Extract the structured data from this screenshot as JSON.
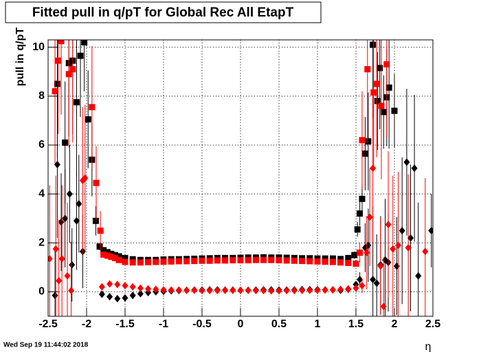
{
  "chart_data": {
    "type": "errorbar-scatter",
    "title": "Fitted pull in q/pT for Global Rec All EtapT",
    "ylabel": "pull in q/pT",
    "xlabel": "η",
    "timestamp": "Wed Sep 19 11:44:02 2018",
    "xlim": [
      -2.5,
      2.5
    ],
    "ylim": [
      -1,
      10.3
    ],
    "xticks": [
      -2.5,
      -2,
      -1.5,
      -1,
      -0.5,
      0,
      0.5,
      1,
      1.5,
      2,
      2.5
    ],
    "yticks": [
      0,
      2,
      4,
      6,
      8,
      10
    ],
    "grid": true,
    "series": [
      {
        "color": "#000000",
        "marker": "square",
        "x": [
          -2.38,
          -2.28,
          -2.23,
          -2.18,
          -2.13,
          -2.08,
          -2.03,
          -1.98,
          -1.93,
          -1.88,
          -1.83,
          -1.78,
          -1.73,
          -1.68,
          -1.63,
          -1.58,
          -1.5,
          -1.4,
          -1.3,
          -1.2,
          -1.1,
          -1.0,
          -0.9,
          -0.8,
          -0.7,
          -0.6,
          -0.5,
          -0.4,
          -0.3,
          -0.2,
          -0.1,
          0.0,
          0.1,
          0.2,
          0.3,
          0.4,
          0.5,
          0.6,
          0.7,
          0.8,
          0.9,
          1.0,
          1.1,
          1.2,
          1.3,
          1.4,
          1.48,
          1.52,
          1.55,
          1.58,
          1.62,
          1.66,
          1.72,
          1.78,
          1.81,
          1.86,
          1.9,
          1.93,
          2.0
        ],
        "values": [
          8.5,
          6.1,
          9.35,
          9.45,
          7.75,
          9.65,
          10.2,
          7.05,
          5.4,
          2.9,
          1.85,
          1.7,
          1.62,
          1.55,
          1.5,
          1.45,
          1.38,
          1.33,
          1.3,
          1.3,
          1.3,
          1.32,
          1.33,
          1.33,
          1.34,
          1.35,
          1.36,
          1.37,
          1.38,
          1.38,
          1.38,
          1.39,
          1.4,
          1.4,
          1.41,
          1.4,
          1.4,
          1.39,
          1.38,
          1.37,
          1.37,
          1.36,
          1.36,
          1.36,
          1.34,
          1.38,
          1.5,
          2.55,
          3.2,
          3.8,
          5.65,
          6.15,
          10.1,
          7.8,
          9.15,
          7.35,
          7.95,
          8.35,
          7.4
        ],
        "errors": [
          3,
          2.5,
          3,
          3,
          3,
          2.5,
          2,
          2,
          1.5,
          0.6,
          0.15,
          0.05,
          0.05,
          0.05,
          0.05,
          0.05,
          0.04,
          0.04,
          0.04,
          0.04,
          0.04,
          0.04,
          0.04,
          0.04,
          0.04,
          0.04,
          0.04,
          0.04,
          0.04,
          0.04,
          0.04,
          0.04,
          0.04,
          0.04,
          0.04,
          0.04,
          0.04,
          0.04,
          0.04,
          0.04,
          0.04,
          0.04,
          0.04,
          0.04,
          0.04,
          0.04,
          0.15,
          0.3,
          0.5,
          0.6,
          1.5,
          2,
          3,
          2,
          2.5,
          1.5,
          2,
          2.5,
          1.5
        ]
      },
      {
        "color": "#ff0000",
        "marker": "square",
        "x": [
          -2.41,
          -2.37,
          -2.33,
          -2.23,
          -2.18,
          -1.93,
          -1.875,
          -1.82,
          -1.78,
          -1.73,
          -1.68,
          -1.63,
          -1.58,
          -1.5,
          -1.4,
          -1.3,
          -1.2,
          -1.1,
          -1.0,
          -0.9,
          -0.8,
          -0.7,
          -0.6,
          -0.5,
          -0.4,
          -0.3,
          -0.2,
          -0.1,
          0.0,
          0.1,
          0.2,
          0.3,
          0.4,
          0.5,
          0.6,
          0.7,
          0.8,
          0.9,
          1.0,
          1.1,
          1.2,
          1.3,
          1.4,
          1.5,
          1.55,
          1.58,
          1.65,
          1.73,
          1.77,
          1.83,
          1.9
        ],
        "values": [
          8.2,
          9.45,
          10.25,
          8.9,
          9.1,
          7.55,
          4.45,
          2.5,
          1.52,
          1.48,
          1.43,
          1.38,
          1.3,
          1.22,
          1.2,
          1.2,
          1.21,
          1.22,
          1.23,
          1.24,
          1.25,
          1.25,
          1.26,
          1.27,
          1.27,
          1.28,
          1.28,
          1.29,
          1.29,
          1.29,
          1.3,
          1.3,
          1.3,
          1.29,
          1.28,
          1.27,
          1.26,
          1.25,
          1.24,
          1.23,
          1.22,
          1.2,
          1.18,
          1.15,
          1.6,
          6.2,
          9.1,
          8.15,
          8.5,
          7.6,
          9.3
        ],
        "errors": [
          3,
          3,
          3,
          3,
          3,
          2.5,
          1.5,
          0.8,
          0.05,
          0.05,
          0.05,
          0.05,
          0.05,
          0.04,
          0.04,
          0.04,
          0.04,
          0.04,
          0.04,
          0.04,
          0.04,
          0.04,
          0.04,
          0.04,
          0.04,
          0.04,
          0.04,
          0.04,
          0.04,
          0.04,
          0.04,
          0.04,
          0.04,
          0.04,
          0.04,
          0.04,
          0.04,
          0.04,
          0.04,
          0.04,
          0.04,
          0.04,
          0.04,
          0.05,
          0.4,
          2,
          3,
          3,
          3,
          3,
          3
        ]
      },
      {
        "color": "#000000",
        "marker": "diamond",
        "x": [
          -2.41,
          -2.38,
          -2.33,
          -2.28,
          -2.22,
          -2.19,
          -2.13,
          -2.1,
          -2.05,
          -1.8,
          -1.7,
          -1.6,
          -1.5,
          -1.4,
          -1.3,
          -1.2,
          -1.1,
          -1.0,
          -0.9,
          -0.8,
          -0.7,
          -0.6,
          -0.5,
          -0.4,
          -0.3,
          -0.2,
          -0.1,
          0.0,
          0.1,
          0.2,
          0.3,
          0.4,
          0.5,
          0.6,
          0.7,
          0.8,
          0.9,
          1.0,
          1.1,
          1.2,
          1.3,
          1.4,
          1.5,
          1.55,
          1.62,
          1.66,
          1.72,
          1.77,
          1.82,
          1.88,
          1.92,
          2.03,
          2.1,
          2.16,
          2.21,
          2.26,
          2.31,
          2.48
        ],
        "values": [
          -0.15,
          5.2,
          2.85,
          3.0,
          4.0,
          1.1,
          2.9,
          3.6,
          1.65,
          -0.1,
          -0.2,
          -0.28,
          -0.25,
          -0.15,
          -0.08,
          -0.03,
          0.0,
          0.02,
          0.04,
          0.05,
          0.06,
          0.07,
          0.07,
          0.08,
          0.08,
          0.07,
          0.07,
          0.06,
          0.06,
          0.07,
          0.08,
          0.08,
          0.07,
          0.07,
          0.08,
          0.09,
          0.09,
          0.09,
          0.08,
          0.08,
          0.06,
          0.1,
          0.3,
          0.5,
          1.8,
          1.9,
          0.5,
          0.35,
          1.1,
          1.3,
          1.2,
          1.05,
          2.5,
          5.3,
          2.2,
          5.05,
          0.65,
          2.5
        ],
        "errors": [
          2,
          3,
          2,
          2,
          2,
          1.5,
          2,
          2,
          1.5,
          0.03,
          0.03,
          0.03,
          0.03,
          0.03,
          0.03,
          0.03,
          0.03,
          0.03,
          0.03,
          0.03,
          0.03,
          0.03,
          0.03,
          0.03,
          0.03,
          0.03,
          0.03,
          0.03,
          0.03,
          0.03,
          0.03,
          0.03,
          0.03,
          0.03,
          0.03,
          0.03,
          0.03,
          0.03,
          0.03,
          0.03,
          0.03,
          0.03,
          0.1,
          0.3,
          1,
          1.5,
          3,
          2,
          2,
          2.5,
          2,
          2,
          3,
          3,
          3,
          3,
          3,
          1.5
        ]
      },
      {
        "color": "#ff0000",
        "marker": "diamond",
        "x": [
          -2.48,
          -2.4,
          -2.36,
          -2.32,
          -2.25,
          -2.2,
          -2.05,
          -2.02,
          -1.8,
          -1.7,
          -1.6,
          -1.5,
          -1.4,
          -1.3,
          -1.2,
          -1.1,
          -1.0,
          -0.9,
          -0.8,
          -0.7,
          -0.6,
          -0.5,
          -0.4,
          -0.3,
          -0.2,
          -0.1,
          0.0,
          0.1,
          0.2,
          0.3,
          0.4,
          0.5,
          0.6,
          0.7,
          0.8,
          0.9,
          1.0,
          1.1,
          1.2,
          1.3,
          1.4,
          1.5,
          1.58,
          1.64,
          1.68,
          1.72,
          1.82,
          1.86,
          1.92,
          1.98,
          2.05,
          2.18,
          2.4
        ],
        "values": [
          1.35,
          1.75,
          0.45,
          1.35,
          0.65,
          0.05,
          4.55,
          4.65,
          0.2,
          0.32,
          0.3,
          0.25,
          0.2,
          0.15,
          0.12,
          0.1,
          0.08,
          0.07,
          0.07,
          0.06,
          0.06,
          0.05,
          0.05,
          0.05,
          0.06,
          0.06,
          0.06,
          0.06,
          0.05,
          0.05,
          0.04,
          0.04,
          0.05,
          0.05,
          0.06,
          0.06,
          0.06,
          0.07,
          0.08,
          0.1,
          0.12,
          0.15,
          0.25,
          1.6,
          3.05,
          5.05,
          1.05,
          -0.6,
          2.75,
          1.75,
          1.9,
          1.8,
          1.65
        ],
        "errors": [
          3,
          3,
          2.5,
          3,
          3,
          2,
          3,
          3,
          0.03,
          0.03,
          0.03,
          0.03,
          0.03,
          0.03,
          0.03,
          0.03,
          0.03,
          0.03,
          0.03,
          0.03,
          0.03,
          0.03,
          0.03,
          0.03,
          0.03,
          0.03,
          0.03,
          0.03,
          0.03,
          0.03,
          0.03,
          0.03,
          0.03,
          0.03,
          0.03,
          0.03,
          0.03,
          0.03,
          0.03,
          0.03,
          0.03,
          0.1,
          0.3,
          1.5,
          2,
          3,
          2,
          2,
          3,
          3,
          3,
          3,
          3
        ]
      }
    ]
  }
}
